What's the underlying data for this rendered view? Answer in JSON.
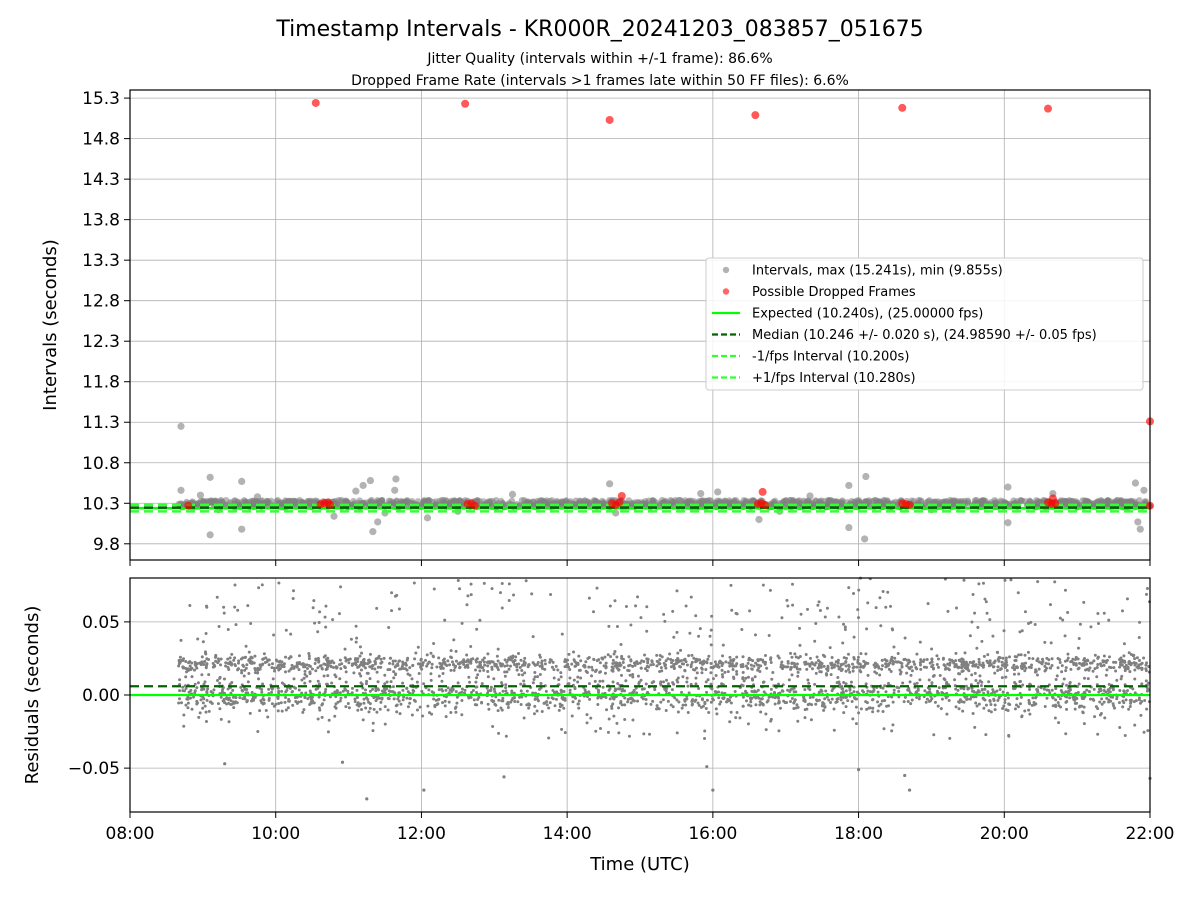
{
  "header": {
    "title": "Timestamp Intervals - KR000R_20241203_083857_051675",
    "subtitle1": "Jitter Quality (intervals within +/-1 frame): 86.6%",
    "subtitle2": "Dropped Frame Rate (intervals >1 frames late within 50 FF files): 6.6%"
  },
  "chart_data": [
    {
      "type": "scatter",
      "title": "Timestamp Intervals - KR000R_20241203_083857_051675",
      "xlabel": "",
      "ylabel": "Intervals (seconds)",
      "xlim": [
        "08:00",
        "22:00"
      ],
      "ylim": [
        9.6,
        15.4
      ],
      "yticks": [
        9.8,
        10.3,
        10.8,
        11.3,
        11.8,
        12.3,
        12.8,
        13.3,
        13.8,
        14.3,
        14.8,
        15.3
      ],
      "grid": true,
      "legend_position": "center-right",
      "colors": {
        "intervals": "#808080",
        "dropped": "#ff0000",
        "expected": "#00ff00",
        "median": "#006400",
        "bounds": "#33ff33"
      },
      "series": [
        {
          "name": "Intervals, max (15.241s), min (9.855s)",
          "kind": "scatter",
          "color": "#808080",
          "points": [
            [
              "08:42",
              11.25
            ],
            [
              "08:42",
              10.46
            ],
            [
              "09:06",
              10.62
            ],
            [
              "09:06",
              9.91
            ],
            [
              "09:32",
              10.57
            ],
            [
              "09:32",
              9.98
            ],
            [
              "09:13",
              10.22
            ],
            [
              "08:58",
              10.4
            ],
            [
              "09:45",
              10.38
            ],
            [
              "10:48",
              10.14
            ],
            [
              "11:06",
              10.45
            ],
            [
              "11:12",
              10.52
            ],
            [
              "11:18",
              10.58
            ],
            [
              "11:24",
              10.07
            ],
            [
              "11:20",
              9.95
            ],
            [
              "11:30",
              10.18
            ],
            [
              "11:38",
              10.46
            ],
            [
              "11:39",
              10.6
            ],
            [
              "12:05",
              10.12
            ],
            [
              "12:30",
              10.2
            ],
            [
              "13:15",
              10.41
            ],
            [
              "14:35",
              10.54
            ],
            [
              "14:40",
              10.18
            ],
            [
              "15:50",
              10.42
            ],
            [
              "16:04",
              10.44
            ],
            [
              "16:38",
              10.1
            ],
            [
              "16:55",
              10.2
            ],
            [
              "17:20",
              10.39
            ],
            [
              "17:52",
              10.52
            ],
            [
              "17:52",
              10.0
            ],
            [
              "18:06",
              10.63
            ],
            [
              "18:05",
              9.86
            ],
            [
              "19:00",
              10.22
            ],
            [
              "20:03",
              10.5
            ],
            [
              "20:03",
              10.06
            ],
            [
              "20:40",
              10.42
            ],
            [
              "21:48",
              10.55
            ],
            [
              "21:52",
              9.98
            ],
            [
              "21:50",
              10.07
            ],
            [
              "21:55",
              10.46
            ]
          ],
          "band": {
            "x_start": "08:40",
            "x_end": "22:00",
            "y_range": [
              10.25,
              10.34
            ]
          }
        },
        {
          "name": "Possible Dropped Frames",
          "kind": "scatter",
          "color": "#ff0000",
          "points": [
            [
              "08:48",
              10.27
            ],
            [
              "10:33",
              15.24
            ],
            [
              "12:36",
              15.23
            ],
            [
              "14:35",
              15.03
            ],
            [
              "16:35",
              15.09
            ],
            [
              "18:36",
              15.18
            ],
            [
              "20:36",
              15.17
            ],
            [
              "22:00",
              11.31
            ],
            [
              "22:00",
              10.27
            ],
            [
              "10:37",
              10.29
            ],
            [
              "10:40",
              10.3
            ],
            [
              "10:43",
              10.31
            ],
            [
              "10:45",
              10.28
            ],
            [
              "12:38",
              10.29
            ],
            [
              "12:41",
              10.3
            ],
            [
              "12:44",
              10.27
            ],
            [
              "14:37",
              10.3
            ],
            [
              "14:40",
              10.28
            ],
            [
              "14:43",
              10.31
            ],
            [
              "14:45",
              10.39
            ],
            [
              "16:37",
              10.29
            ],
            [
              "16:40",
              10.3
            ],
            [
              "16:43",
              10.28
            ],
            [
              "16:41",
              10.44
            ],
            [
              "18:36",
              10.3
            ],
            [
              "18:39",
              10.29
            ],
            [
              "18:42",
              10.28
            ],
            [
              "20:36",
              10.31
            ],
            [
              "20:39",
              10.29
            ],
            [
              "20:42",
              10.3
            ],
            [
              "20:40",
              10.36
            ]
          ]
        },
        {
          "name": "Expected (10.240s), (25.00000 fps)",
          "kind": "hline",
          "y": 10.24,
          "style": "solid",
          "color": "#00ff00"
        },
        {
          "name": "Median (10.246 +/- 0.020 s), (24.98590 +/- 0.05 fps)",
          "kind": "hline",
          "y": 10.246,
          "style": "dashed",
          "color": "#006400"
        },
        {
          "name": "-1/fps Interval (10.200s)",
          "kind": "hline",
          "y": 10.2,
          "style": "dashed",
          "color": "#33ff33"
        },
        {
          "name": "+1/fps Interval (10.280s)",
          "kind": "hline",
          "y": 10.28,
          "style": "dashed",
          "color": "#33ff33"
        }
      ]
    },
    {
      "type": "scatter",
      "xlabel": "Time (UTC)",
      "ylabel": "Residuals (seconds)",
      "xlim": [
        "08:00",
        "22:00"
      ],
      "xticks": [
        "08:00",
        "10:00",
        "12:00",
        "14:00",
        "16:00",
        "18:00",
        "20:00",
        "22:00"
      ],
      "ylim": [
        -0.08,
        0.08
      ],
      "yticks": [
        -0.05,
        0.0,
        0.05
      ],
      "ytick_labels": [
        "−0.05",
        "0.00",
        "0.05"
      ],
      "grid": true,
      "series": [
        {
          "kind": "scatter",
          "color": "#808080",
          "cluster_centers": [
            0.0,
            0.021
          ],
          "x_start": "08:40",
          "x_end": "22:00",
          "outliers": [
            [
              "11:15",
              -0.071
            ],
            [
              "12:02",
              -0.065
            ],
            [
              "13:08",
              -0.056
            ],
            [
              "15:55",
              -0.049
            ],
            [
              "16:00",
              -0.065
            ],
            [
              "18:00",
              -0.051
            ],
            [
              "18:38",
              -0.055
            ],
            [
              "18:42",
              -0.065
            ],
            [
              "22:00",
              -0.057
            ],
            [
              "09:18",
              -0.047
            ],
            [
              "10:55",
              -0.046
            ]
          ]
        },
        {
          "kind": "hline",
          "y": 0.0,
          "style": "solid",
          "color": "#00ff00"
        },
        {
          "kind": "hline",
          "y": 0.006,
          "style": "dashed",
          "color": "#006400"
        }
      ]
    }
  ]
}
